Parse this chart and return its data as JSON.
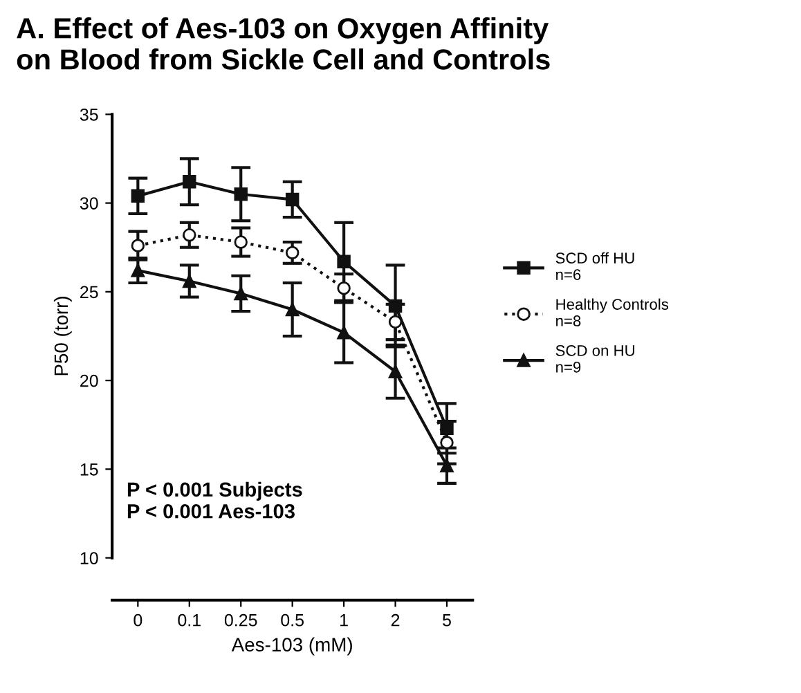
{
  "chart_data": {
    "type": "line",
    "title": "A. Effect of Aes-103 on Oxygen Affinity\non Blood from Sickle Cell and Controls",
    "xlabel": "Aes-103 (mM)",
    "ylabel": "P50 (torr)",
    "categories": [
      "0",
      "0.1",
      "0.25",
      "0.5",
      "1",
      "2",
      "5"
    ],
    "series": [
      {
        "name": "SCD off HU\nn=6",
        "color": "#111111",
        "marker": "square",
        "line_style": "solid",
        "values": [
          30.4,
          31.2,
          30.5,
          30.2,
          26.7,
          24.2,
          17.3
        ],
        "errors": [
          1.0,
          1.3,
          1.5,
          1.0,
          2.2,
          2.3,
          1.4
        ]
      },
      {
        "name": "Healthy Controls\nn=8",
        "color": "#111111",
        "marker": "circle",
        "line_style": "dotted",
        "values": [
          27.6,
          28.2,
          27.8,
          27.2,
          25.2,
          23.3,
          16.5
        ],
        "errors": [
          0.8,
          0.7,
          0.8,
          0.6,
          0.8,
          1.0,
          1.2
        ]
      },
      {
        "name": "SCD on HU\nn=9",
        "color": "#111111",
        "marker": "triangle",
        "line_style": "solid",
        "values": [
          26.2,
          25.6,
          24.9,
          24.0,
          22.7,
          20.5,
          15.2
        ],
        "errors": [
          0.7,
          0.9,
          1.0,
          1.5,
          1.7,
          1.5,
          1.0
        ]
      }
    ],
    "ylim": [
      10,
      35
    ],
    "yticks": [
      10,
      15,
      20,
      25,
      30,
      35
    ],
    "legend": "right",
    "grid": false,
    "annotations": [
      "P < 0.001 Subjects\nP < 0.001 Aes-103"
    ]
  }
}
